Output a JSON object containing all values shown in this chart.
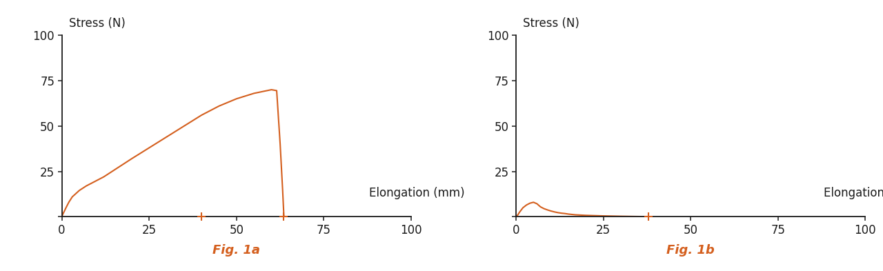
{
  "line_color": "#D45F1E",
  "fig_label_color": "#D45F1E",
  "axis_color": "#1a1a1a",
  "bg_color": "#ffffff",
  "ylabel": "Stress (N)",
  "xlabel": "Elongation (mm)",
  "fig1a_label": "Fig. 1a",
  "fig1b_label": "Fig. 1b",
  "xlim": [
    0,
    100
  ],
  "ylim": [
    0,
    100
  ],
  "yticks": [
    0,
    25,
    50,
    75,
    100
  ],
  "xticks": [
    0,
    25,
    50,
    75,
    100
  ],
  "font_size": 12,
  "chart_a": {
    "x": [
      0,
      0.3,
      0.7,
      1.2,
      2,
      3,
      5,
      7,
      9,
      12,
      16,
      20,
      25,
      30,
      35,
      40,
      45,
      50,
      55,
      58,
      60,
      61.5,
      62.5,
      63.2,
      63.5,
      63.55,
      63.6,
      63.65,
      65
    ],
    "y": [
      0,
      1.5,
      3,
      5,
      8,
      11,
      14.5,
      17,
      19,
      22,
      27,
      32,
      38,
      44,
      50,
      56,
      61,
      65,
      68,
      69.2,
      70,
      69.5,
      40,
      15,
      3,
      1,
      0.5,
      0.1,
      0
    ],
    "marker1_x": 40,
    "marker2_x": 63.5
  },
  "chart_b": {
    "x": [
      0,
      0.5,
      1,
      2,
      3,
      4,
      5,
      6,
      7,
      8,
      9,
      10,
      11,
      12,
      13,
      14,
      15,
      17,
      20,
      25,
      30,
      35,
      37,
      38,
      38.5
    ],
    "y": [
      0,
      1,
      2.5,
      5,
      6.5,
      7.5,
      8,
      7.2,
      5.5,
      4.5,
      3.8,
      3.2,
      2.7,
      2.3,
      2.0,
      1.8,
      1.5,
      1.1,
      0.8,
      0.5,
      0.3,
      0.15,
      0.08,
      0.02,
      0
    ],
    "marker1_x": 38
  }
}
